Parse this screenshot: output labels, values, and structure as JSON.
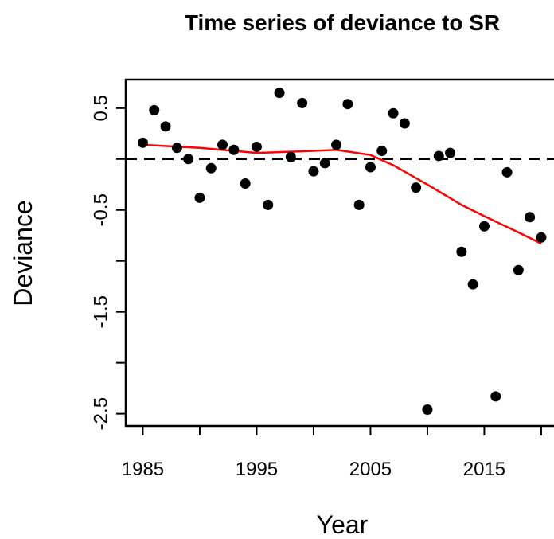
{
  "chart_data": {
    "type": "scatter",
    "title": "Time series of deviance to SR",
    "xlabel": "Year",
    "ylabel": "Deviance",
    "xlim": [
      1983.5,
      2021.6
    ],
    "ylim": [
      -2.62,
      0.78
    ],
    "xticks": [
      1985,
      1995,
      2005,
      2015
    ],
    "xminor": [
      1990,
      2000,
      2010,
      2020
    ],
    "yticks": [
      0.5,
      -0.5,
      -1.5,
      -2.5
    ],
    "yminor": [
      0,
      -1,
      -2
    ],
    "hline": 0,
    "x": [
      1985,
      1986,
      1987,
      1988,
      1989,
      1990,
      1991,
      1992,
      1993,
      1994,
      1995,
      1996,
      1997,
      1998,
      1999,
      2000,
      2001,
      2002,
      2003,
      2004,
      2005,
      2006,
      2007,
      2008,
      2009,
      2010,
      2011,
      2012,
      2013,
      2014,
      2015,
      2016,
      2017,
      2018,
      2019,
      2020
    ],
    "values": [
      0.16,
      0.48,
      0.32,
      0.11,
      0.0,
      -0.38,
      -0.09,
      0.14,
      0.09,
      -0.24,
      0.12,
      -0.45,
      0.65,
      0.02,
      0.55,
      -0.12,
      -0.04,
      0.14,
      0.54,
      -0.45,
      -0.08,
      0.08,
      0.45,
      0.35,
      -0.28,
      -2.46,
      0.03,
      0.06,
      -0.91,
      -1.23,
      -0.66,
      -2.33,
      -0.13,
      -1.09,
      -0.57,
      -0.77
    ],
    "color": "#000000",
    "smooth": {
      "color": "#ff0000",
      "x": [
        1985,
        1990,
        1995,
        2000,
        2002,
        2005,
        2007,
        2010,
        2013,
        2015,
        2018,
        2020
      ],
      "values": [
        0.14,
        0.11,
        0.06,
        0.08,
        0.09,
        0.04,
        -0.06,
        -0.25,
        -0.45,
        -0.56,
        -0.72,
        -0.83
      ]
    }
  }
}
